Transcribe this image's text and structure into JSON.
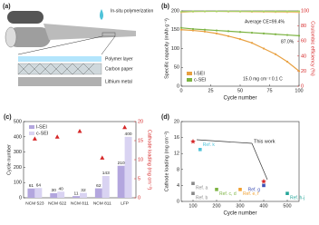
{
  "panel_a": {
    "label": "(a)",
    "texts": [
      "In-situ polymerization",
      "Polymer layer",
      "Carbon paper",
      "Lithium metal"
    ]
  },
  "chart_data": [
    {
      "type": "line",
      "label": "(b)",
      "xlabel": "Cycle number",
      "ylabel": "Specific capacity (mAh g⁻¹)",
      "y2label": "Coulombic efficiency (%)",
      "x": [
        0,
        10,
        20,
        30,
        40,
        50,
        60,
        70,
        80,
        90,
        100
      ],
      "xlim": [
        0,
        100
      ],
      "xticks": [
        0,
        25,
        50,
        75,
        100
      ],
      "ylim": [
        0,
        200
      ],
      "yticks": [
        0,
        50,
        100,
        150,
        200
      ],
      "y2lim": [
        0,
        100
      ],
      "y2ticks": [
        0,
        20,
        40,
        60,
        80,
        100
      ],
      "annotations": [
        "Average CE=99.4%",
        "87.0%",
        "15.0 mg cm⁻² 0.1 C"
      ],
      "series": [
        {
          "name": "l-SEI",
          "color": "#e8a040",
          "values": [
            150,
            148,
            145,
            140,
            133,
            125,
            115,
            100,
            85,
            65,
            40
          ]
        },
        {
          "name": "c-SEI",
          "color": "#7cb342",
          "values": [
            155,
            152,
            150,
            148,
            146,
            144,
            142,
            140,
            138,
            136,
            134
          ]
        },
        {
          "color": "#f0c27a",
          "axis": "y2",
          "values": [
            98,
            99,
            99.2,
            99.3,
            99.1,
            99,
            98.8,
            98.6,
            98.5,
            98.3,
            98
          ]
        },
        {
          "color": "#a5d06a",
          "axis": "y2",
          "values": [
            99,
            99.4,
            99.5,
            99.5,
            99.5,
            99.4,
            99.5,
            99.5,
            99.4,
            99.5,
            99.5
          ]
        }
      ]
    },
    {
      "type": "bar",
      "label": "(c)",
      "ylabel": "Cycle number",
      "y2label": "Cathode loading (mg cm⁻²)",
      "categories": [
        "NCM 523",
        "NCM 622",
        "NCM 811",
        "NCM 811",
        "LFP"
      ],
      "ylim": [
        0,
        500
      ],
      "yticks": [
        0,
        100,
        200,
        300,
        400,
        500
      ],
      "y2lim": [
        0,
        20
      ],
      "y2ticks": [
        0,
        5,
        10,
        15,
        20
      ],
      "series": [
        {
          "name": "l-SEI",
          "color": "#b3a6de",
          "values": [
            61,
            30,
            11,
            62,
            210
          ]
        },
        {
          "name": "c-SEI",
          "color": "#d9d3f2",
          "values": [
            64,
            40,
            32,
            143,
            400
          ]
        },
        {
          "color": "#d62728",
          "axis": "y2",
          "values": [
            15.5,
            16,
            17.5,
            10.5,
            18.5
          ]
        }
      ]
    },
    {
      "type": "scatter",
      "label": "(d)",
      "xlabel": "Cycle number",
      "ylabel": "Cathode loading (mg cm⁻²)",
      "xlim": [
        50,
        550
      ],
      "xticks": [
        100,
        200,
        300,
        400,
        500
      ],
      "ylim": [
        0,
        20
      ],
      "yticks": [
        0,
        4,
        8,
        12,
        16,
        20
      ],
      "annotation": "This work",
      "points": [
        {
          "x": 100,
          "y": 15,
          "color": "#d62728"
        },
        {
          "x": 400,
          "y": 5,
          "color": "#d62728"
        },
        {
          "label": "Ref. k",
          "x": 130,
          "y": 13,
          "color": "#4fc3d9"
        },
        {
          "label": "Ref. a",
          "x": 100,
          "y": 4.5,
          "color": "#888888"
        },
        {
          "label": "Ref. b",
          "x": 100,
          "y": 2,
          "color": "#888888"
        },
        {
          "label": "Ref. c, d",
          "x": 200,
          "y": 3,
          "color": "#7cb342"
        },
        {
          "label": "Ref. e, f",
          "x": 300,
          "y": 3,
          "color": "#f0a030"
        },
        {
          "label": "Ref. g",
          "x": 400,
          "y": 4,
          "color": "#3f51b5"
        },
        {
          "label": "Ref. h-j",
          "x": 500,
          "y": 2,
          "color": "#26a69a"
        }
      ]
    }
  ]
}
